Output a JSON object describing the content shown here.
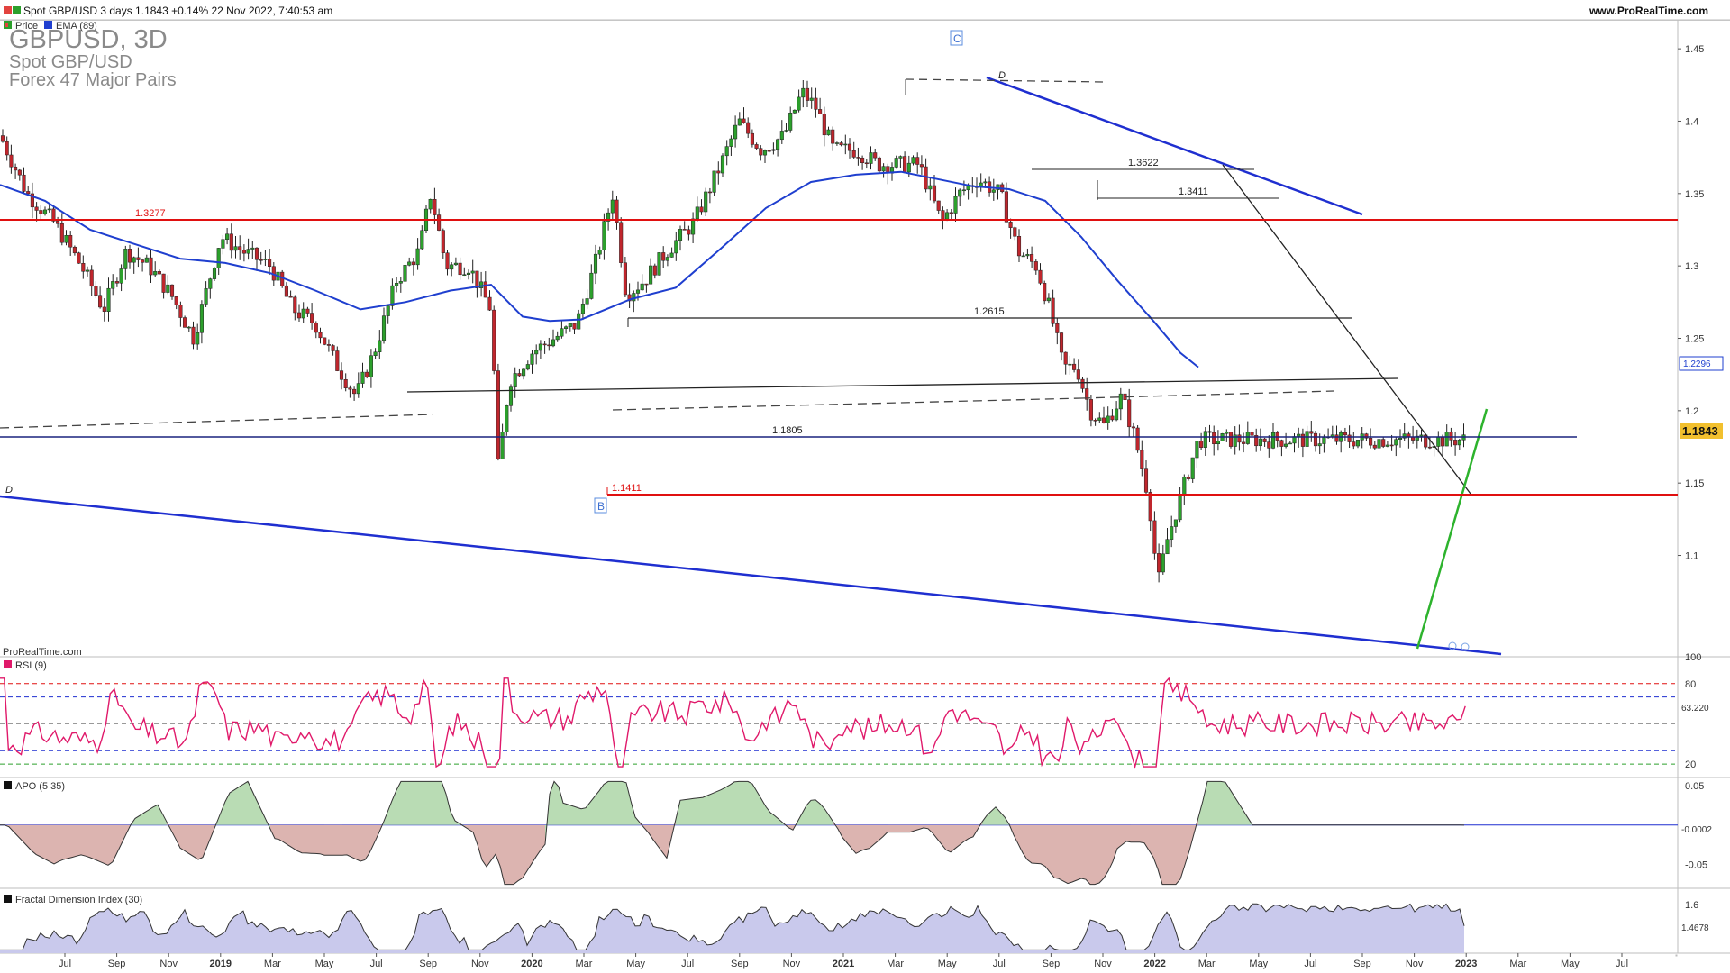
{
  "header": {
    "title": "Spot GBP/USD 3 days 1.1843 +0.14% 22 Nov 2022, 7:40:53 am",
    "site": "www.ProRealTime.com",
    "legend": [
      {
        "label": "Price",
        "color": "#2ca02c"
      },
      {
        "label": "EMA (89)",
        "color": "#1f3fcf"
      }
    ]
  },
  "watermark": {
    "line1": "GBPUSD, 3D",
    "line2": "Spot GBP/USD",
    "line3": "Forex 47 Major Pairs"
  },
  "copyright": "ProRealTime.com",
  "colors": {
    "up": "#2ca02c",
    "down": "#c0262d",
    "ema": "#1f3fcf",
    "resistance": "#e01010",
    "rsi": "#e0196a",
    "apo_pos": "#b9dcb4",
    "apo_neg": "#dcb4b0",
    "fdi_fill": "#c9c9ec"
  },
  "chart_data": [
    {
      "type": "candlestick",
      "title": "Spot GBP/USD 3D",
      "ylim": [
        1.03,
        1.47
      ],
      "ticks": [
        "1.45",
        "1.4",
        "1.35",
        "1.3",
        "1.25",
        "1.2",
        "1.15",
        "1.1"
      ],
      "x_labels": [
        "Jul",
        "Sep",
        "Nov",
        "2019",
        "Mar",
        "May",
        "Jul",
        "Sep",
        "Nov",
        "2020",
        "Mar",
        "May",
        "Jul",
        "Sep",
        "Nov",
        "2021",
        "Mar",
        "May",
        "Jul",
        "Sep",
        "Nov",
        "2022",
        "Mar",
        "May",
        "Jul",
        "Sep",
        "Nov",
        "2023",
        "Mar",
        "May",
        "Jul"
      ],
      "last_price": "1.1843",
      "ema_label": "1.2296",
      "close_path": [
        [
          0,
          1.39
        ],
        [
          30,
          1.35
        ],
        [
          60,
          1.33
        ],
        [
          90,
          1.3
        ],
        [
          115,
          1.27
        ],
        [
          140,
          1.31
        ],
        [
          165,
          1.3
        ],
        [
          190,
          1.28
        ],
        [
          215,
          1.25
        ],
        [
          245,
          1.32
        ],
        [
          270,
          1.31
        ],
        [
          300,
          1.3
        ],
        [
          325,
          1.27
        ],
        [
          350,
          1.26
        ],
        [
          375,
          1.23
        ],
        [
          395,
          1.21
        ],
        [
          415,
          1.24
        ],
        [
          440,
          1.29
        ],
        [
          465,
          1.31
        ],
        [
          478,
          1.35
        ],
        [
          495,
          1.3
        ],
        [
          520,
          1.3
        ],
        [
          545,
          1.27
        ],
        [
          553,
          1.16
        ],
        [
          565,
          1.22
        ],
        [
          590,
          1.24
        ],
        [
          615,
          1.25
        ],
        [
          640,
          1.26
        ],
        [
          660,
          1.3
        ],
        [
          680,
          1.35
        ],
        [
          695,
          1.28
        ],
        [
          715,
          1.29
        ],
        [
          740,
          1.31
        ],
        [
          770,
          1.33
        ],
        [
          800,
          1.37
        ],
        [
          820,
          1.4
        ],
        [
          845,
          1.38
        ],
        [
          870,
          1.39
        ],
        [
          890,
          1.42
        ],
        [
          905,
          1.41
        ],
        [
          925,
          1.38
        ],
        [
          950,
          1.38
        ],
        [
          975,
          1.37
        ],
        [
          1000,
          1.37
        ],
        [
          1020,
          1.37
        ],
        [
          1045,
          1.33
        ],
        [
          1065,
          1.35
        ],
        [
          1085,
          1.36
        ],
        [
          1110,
          1.35
        ],
        [
          1130,
          1.31
        ],
        [
          1150,
          1.3
        ],
        [
          1165,
          1.27
        ],
        [
          1180,
          1.23
        ],
        [
          1195,
          1.23
        ],
        [
          1210,
          1.2
        ],
        [
          1225,
          1.19
        ],
        [
          1245,
          1.21
        ],
        [
          1260,
          1.18
        ],
        [
          1275,
          1.14
        ],
        [
          1285,
          1.08
        ],
        [
          1295,
          1.11
        ],
        [
          1310,
          1.14
        ],
        [
          1330,
          1.18
        ]
      ],
      "ema_path": [
        [
          0,
          1.356
        ],
        [
          50,
          1.345
        ],
        [
          100,
          1.325
        ],
        [
          150,
          1.315
        ],
        [
          200,
          1.305
        ],
        [
          250,
          1.302
        ],
        [
          300,
          1.295
        ],
        [
          350,
          1.283
        ],
        [
          400,
          1.27
        ],
        [
          450,
          1.275
        ],
        [
          500,
          1.283
        ],
        [
          545,
          1.287
        ],
        [
          580,
          1.265
        ],
        [
          610,
          1.262
        ],
        [
          645,
          1.263
        ],
        [
          700,
          1.277
        ],
        [
          750,
          1.285
        ],
        [
          800,
          1.312
        ],
        [
          850,
          1.34
        ],
        [
          900,
          1.358
        ],
        [
          950,
          1.363
        ],
        [
          1000,
          1.365
        ],
        [
          1040,
          1.36
        ],
        [
          1080,
          1.355
        ],
        [
          1120,
          1.353
        ],
        [
          1160,
          1.345
        ],
        [
          1200,
          1.32
        ],
        [
          1240,
          1.29
        ],
        [
          1280,
          1.262
        ],
        [
          1310,
          1.24
        ],
        [
          1330,
          1.23
        ]
      ],
      "levels": [
        {
          "label": "1.3277",
          "value": 1.3277,
          "color": "red"
        },
        {
          "label": "1.2615",
          "value": 1.2615,
          "color": "black"
        },
        {
          "label": "1.1805",
          "value": 1.1805,
          "color": "navy"
        },
        {
          "label": "1.1411",
          "value": 1.1411,
          "color": "red"
        },
        {
          "label": "1.3622",
          "value": 1.3622,
          "color": "black"
        },
        {
          "label": "1.3411",
          "value": 1.3411,
          "color": "black"
        }
      ],
      "markers": {
        "C": "C",
        "B": "B",
        "D_top": "D",
        "D_left": "D"
      }
    },
    {
      "type": "line",
      "title": "RSI (9)",
      "ylim": [
        10,
        100
      ],
      "ticks": [
        "100",
        "80",
        "20"
      ],
      "last_value": "63.220",
      "levels": [
        80,
        70,
        50,
        30,
        20
      ]
    },
    {
      "type": "area",
      "title": "APO (5 35)",
      "ylim": [
        -0.08,
        0.06
      ],
      "ticks": [
        "0.05",
        "-0.05"
      ],
      "last_value": "-0.0002"
    },
    {
      "type": "area",
      "title": "Fractal Dimension Index (30)",
      "ylim": [
        1.3,
        1.7
      ],
      "ticks": [
        "1.6"
      ],
      "last_value": "1.4678"
    }
  ]
}
